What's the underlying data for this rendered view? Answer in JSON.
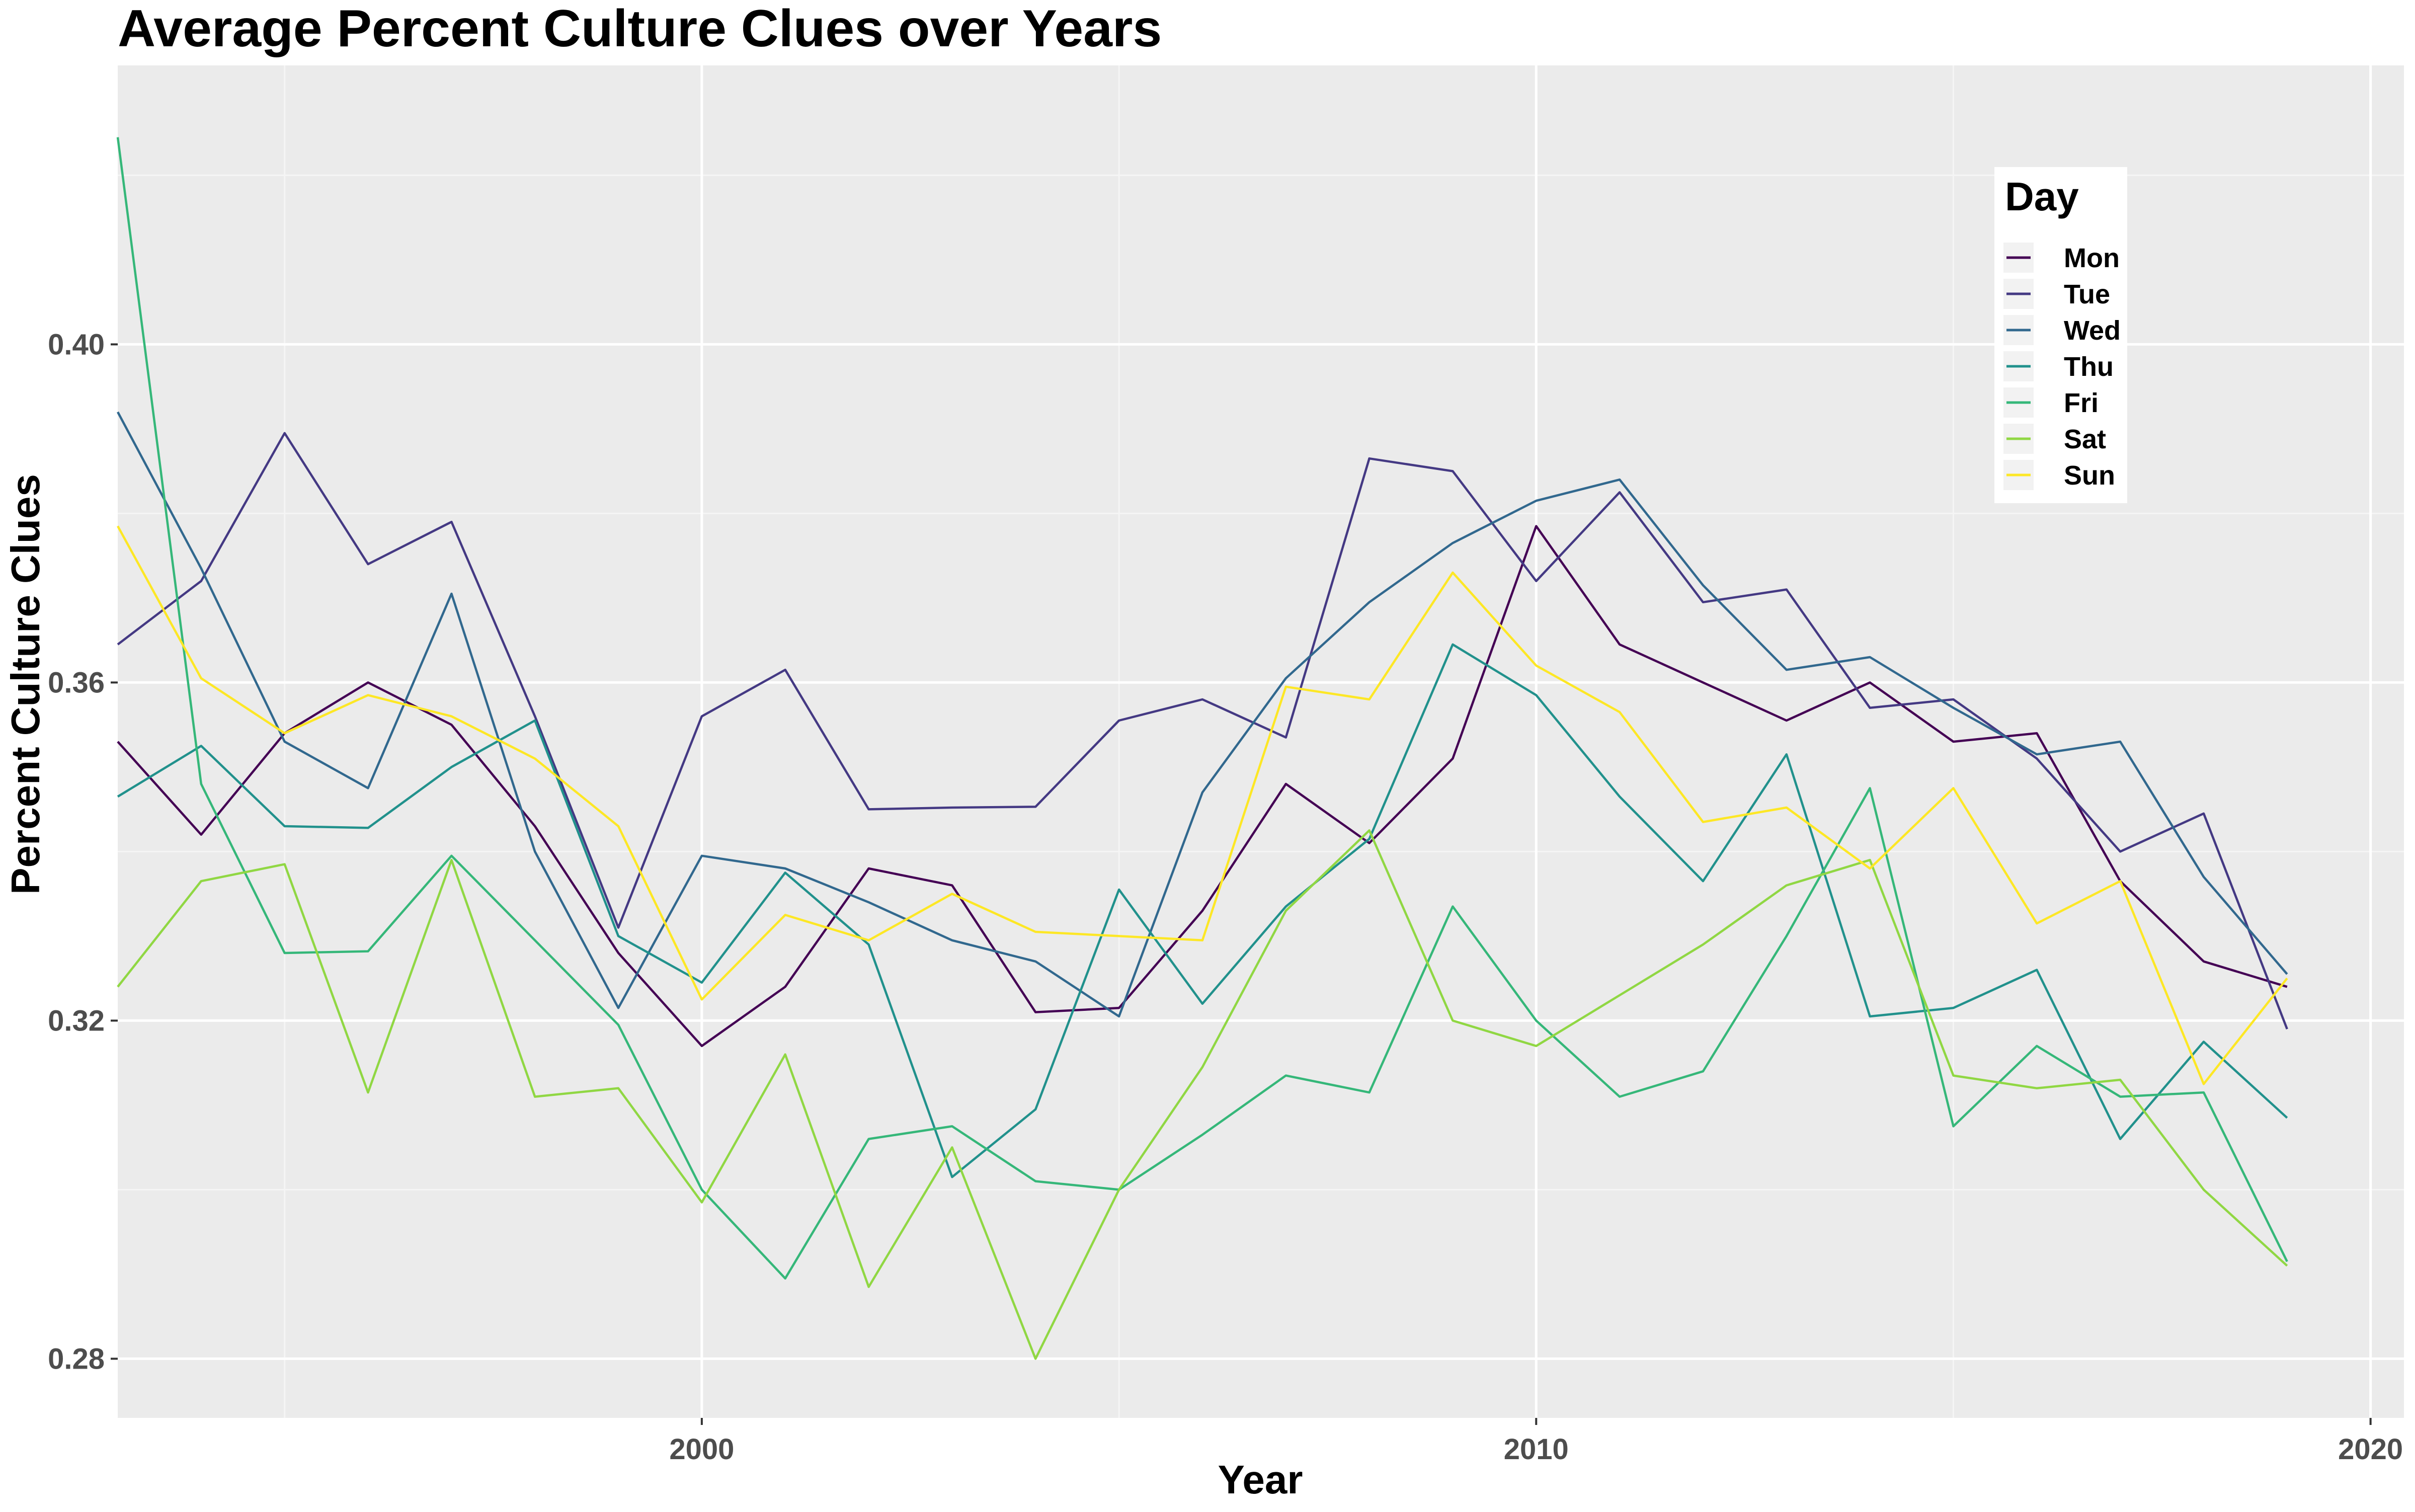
{
  "chart_data": {
    "type": "line",
    "title": "Average Percent Culture Clues over Years",
    "xlabel": "Year",
    "ylabel": "Percent Culture Clues",
    "xlim": [
      1993,
      2020.4
    ],
    "ylim": [
      0.273,
      0.433
    ],
    "x_ticks": [
      2000,
      2010,
      2020
    ],
    "x_minor_ticks": [
      1995,
      2005,
      2015
    ],
    "y_ticks": [
      0.28,
      0.32,
      0.36,
      0.4
    ],
    "y_tick_labels": [
      "0.28",
      "0.32",
      "0.36",
      "0.40"
    ],
    "y_minor_ticks": [
      0.3,
      0.34,
      0.38,
      0.42
    ],
    "grid": true,
    "legend": {
      "title": "Day",
      "placement": "top-right (inside)"
    },
    "x": [
      1993,
      1994,
      1995,
      1996,
      1997,
      1998,
      1999,
      2000,
      2001,
      2002,
      2003,
      2004,
      2005,
      2006,
      2007,
      2008,
      2009,
      2010,
      2011,
      2012,
      2013,
      2014,
      2015,
      2016,
      2017,
      2018,
      2019
    ],
    "series": [
      {
        "name": "Mon",
        "color": "#440154",
        "values": [
          0.353,
          0.342,
          0.354,
          0.36,
          0.355,
          0.343,
          0.328,
          0.317,
          0.324,
          0.338,
          0.336,
          0.321,
          0.3215,
          0.333,
          0.348,
          0.341,
          0.351,
          0.3785,
          0.3645,
          0.36,
          0.3555,
          0.36,
          0.353,
          0.354,
          0.3365,
          0.327,
          0.324
        ]
      },
      {
        "name": "Tue",
        "color": "#443983",
        "values": [
          0.3645,
          0.372,
          0.3895,
          0.374,
          0.379,
          0.356,
          0.331,
          0.356,
          0.3615,
          0.345,
          0.3452,
          0.3453,
          0.3555,
          0.358,
          0.3535,
          0.3865,
          0.385,
          0.372,
          0.3825,
          0.3695,
          0.371,
          0.357,
          0.358,
          0.351,
          0.34,
          0.3445,
          0.319
        ]
      },
      {
        "name": "Wed",
        "color": "#31688e",
        "values": [
          0.392,
          0.3735,
          0.353,
          0.3475,
          0.3705,
          0.34,
          0.3215,
          0.3395,
          0.338,
          0.334,
          0.3295,
          0.327,
          0.3205,
          0.347,
          0.3605,
          0.3695,
          0.3765,
          0.3815,
          0.384,
          0.3715,
          0.3615,
          0.363,
          0.357,
          0.3515,
          0.353,
          0.337,
          0.3255
        ]
      },
      {
        "name": "Thu",
        "color": "#21918c",
        "values": [
          0.3465,
          0.3525,
          0.343,
          0.3428,
          0.35,
          0.3555,
          0.33,
          0.3245,
          0.3375,
          0.329,
          0.3015,
          0.3095,
          0.3355,
          0.322,
          0.3335,
          0.3415,
          0.3645,
          0.3585,
          0.3465,
          0.3365,
          0.3515,
          0.3205,
          0.3215,
          0.326,
          0.306,
          0.3175,
          0.3085
        ]
      },
      {
        "name": "Fri",
        "color": "#35b779",
        "values": [
          0.4245,
          0.348,
          0.328,
          0.3282,
          0.3395,
          0.3295,
          0.3195,
          0.3,
          0.2895,
          0.306,
          0.3075,
          0.301,
          0.3,
          0.3065,
          0.3135,
          0.3115,
          0.3335,
          0.32,
          0.311,
          0.314,
          0.33,
          0.3475,
          0.3075,
          0.317,
          0.311,
          0.3115,
          0.2915
        ]
      },
      {
        "name": "Sat",
        "color": "#90d743",
        "values": [
          0.324,
          0.3365,
          0.3385,
          0.3115,
          0.339,
          0.311,
          0.312,
          0.2985,
          0.316,
          0.2885,
          0.305,
          0.28,
          0.3,
          0.3145,
          0.333,
          0.3425,
          0.32,
          0.317,
          0.323,
          0.329,
          0.336,
          0.339,
          0.3135,
          0.312,
          0.313,
          0.3,
          0.291
        ]
      },
      {
        "name": "Sun",
        "color": "#fde725",
        "values": [
          0.3785,
          0.3605,
          0.354,
          0.3585,
          0.356,
          0.351,
          0.343,
          0.3225,
          0.3325,
          0.3295,
          0.335,
          0.3305,
          0.33,
          0.3295,
          0.3595,
          0.358,
          0.373,
          0.362,
          0.3565,
          0.3435,
          0.3452,
          0.338,
          0.3475,
          0.3315,
          0.3365,
          0.3125,
          0.325
        ]
      }
    ]
  }
}
